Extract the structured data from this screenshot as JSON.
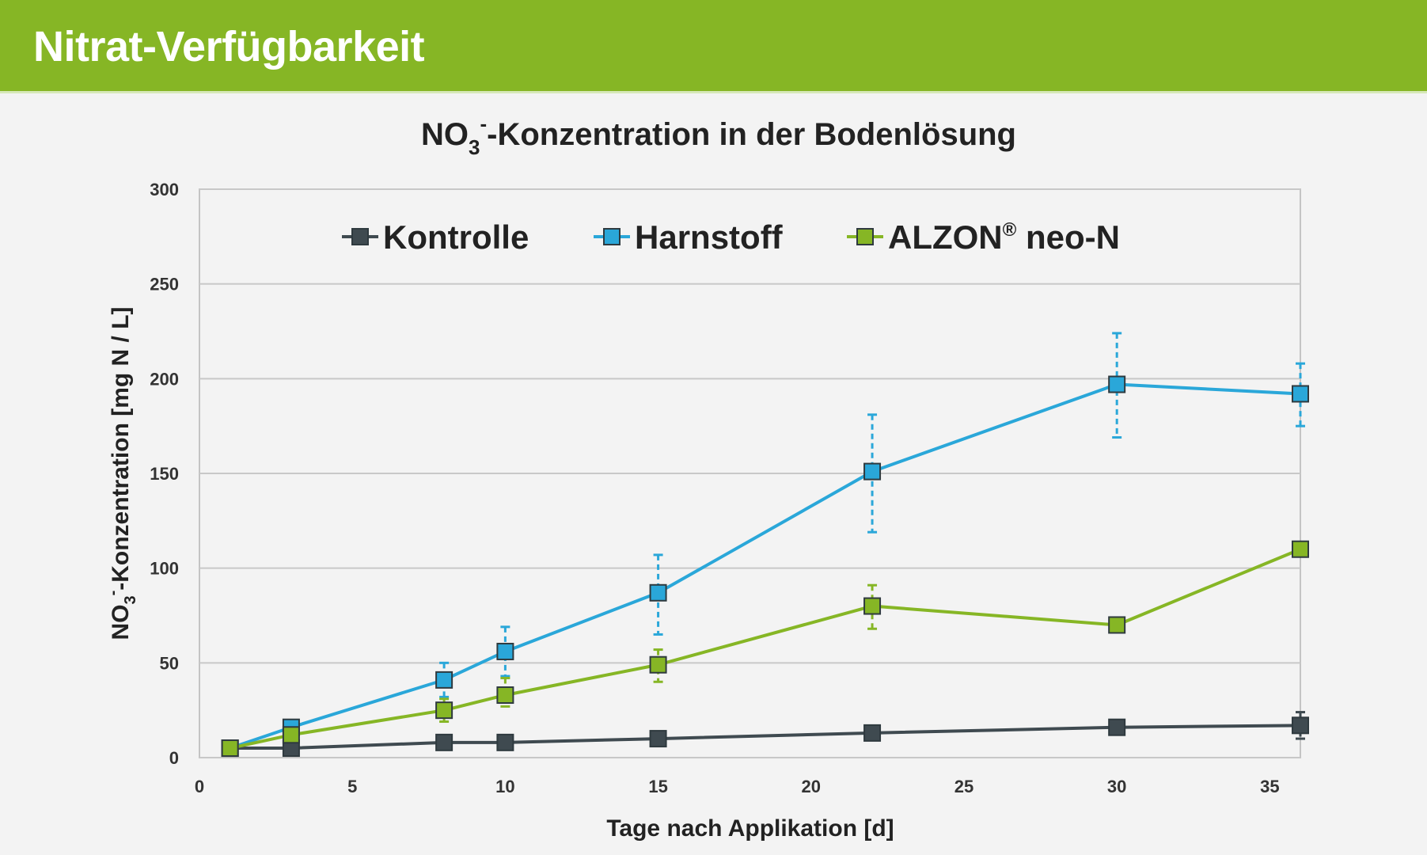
{
  "header": {
    "title": "Nitrat-Verfügbarkeit"
  },
  "chart_data": {
    "type": "line",
    "title_parts": {
      "pre": "NO",
      "sub": "3",
      "sup": "-",
      "post": "-Konzentration in der Bodenlösung"
    },
    "xlabel": "Tage nach Applikation  [d]",
    "ylabel_parts": {
      "pre": "NO",
      "sub": "3",
      "sup": "-",
      "post": "-Konzentration  [mg N / L]"
    },
    "xlim": [
      0,
      36
    ],
    "ylim": [
      0,
      300
    ],
    "x_ticks": [
      0,
      5,
      10,
      15,
      20,
      25,
      30,
      35
    ],
    "y_ticks": [
      0,
      50,
      100,
      150,
      200,
      250,
      300
    ],
    "grid": "horizontal",
    "legend_position": "top",
    "series": [
      {
        "name": "Kontrolle",
        "color": "#3f4a50",
        "points": [
          {
            "x": 1,
            "y": 5
          },
          {
            "x": 3,
            "y": 5
          },
          {
            "x": 8,
            "y": 8
          },
          {
            "x": 10,
            "y": 8
          },
          {
            "x": 15,
            "y": 10
          },
          {
            "x": 22,
            "y": 13
          },
          {
            "x": 30,
            "y": 16
          },
          {
            "x": 36,
            "y": 17,
            "err": [
              10,
              24
            ]
          }
        ]
      },
      {
        "name": "Harnstoff",
        "color": "#2aa7d9",
        "points": [
          {
            "x": 1,
            "y": 5
          },
          {
            "x": 3,
            "y": 16
          },
          {
            "x": 8,
            "y": 41,
            "err": [
              32,
              50
            ]
          },
          {
            "x": 10,
            "y": 56,
            "err": [
              43,
              69
            ]
          },
          {
            "x": 15,
            "y": 87,
            "err": [
              65,
              107
            ]
          },
          {
            "x": 22,
            "y": 151,
            "err": [
              119,
              181
            ]
          },
          {
            "x": 30,
            "y": 197,
            "err": [
              169,
              224
            ]
          },
          {
            "x": 36,
            "y": 192,
            "err": [
              175,
              208
            ]
          }
        ]
      },
      {
        "name": "ALZON",
        "name_sup": "®",
        "name_post": " neo-N",
        "color": "#86b625",
        "points": [
          {
            "x": 1,
            "y": 5
          },
          {
            "x": 3,
            "y": 12
          },
          {
            "x": 8,
            "y": 25,
            "err": [
              19,
              31
            ]
          },
          {
            "x": 10,
            "y": 33,
            "err": [
              27,
              42
            ]
          },
          {
            "x": 15,
            "y": 49,
            "err": [
              40,
              57
            ]
          },
          {
            "x": 22,
            "y": 80,
            "err": [
              68,
              91
            ]
          },
          {
            "x": 30,
            "y": 70
          },
          {
            "x": 36,
            "y": 110
          }
        ]
      }
    ]
  }
}
